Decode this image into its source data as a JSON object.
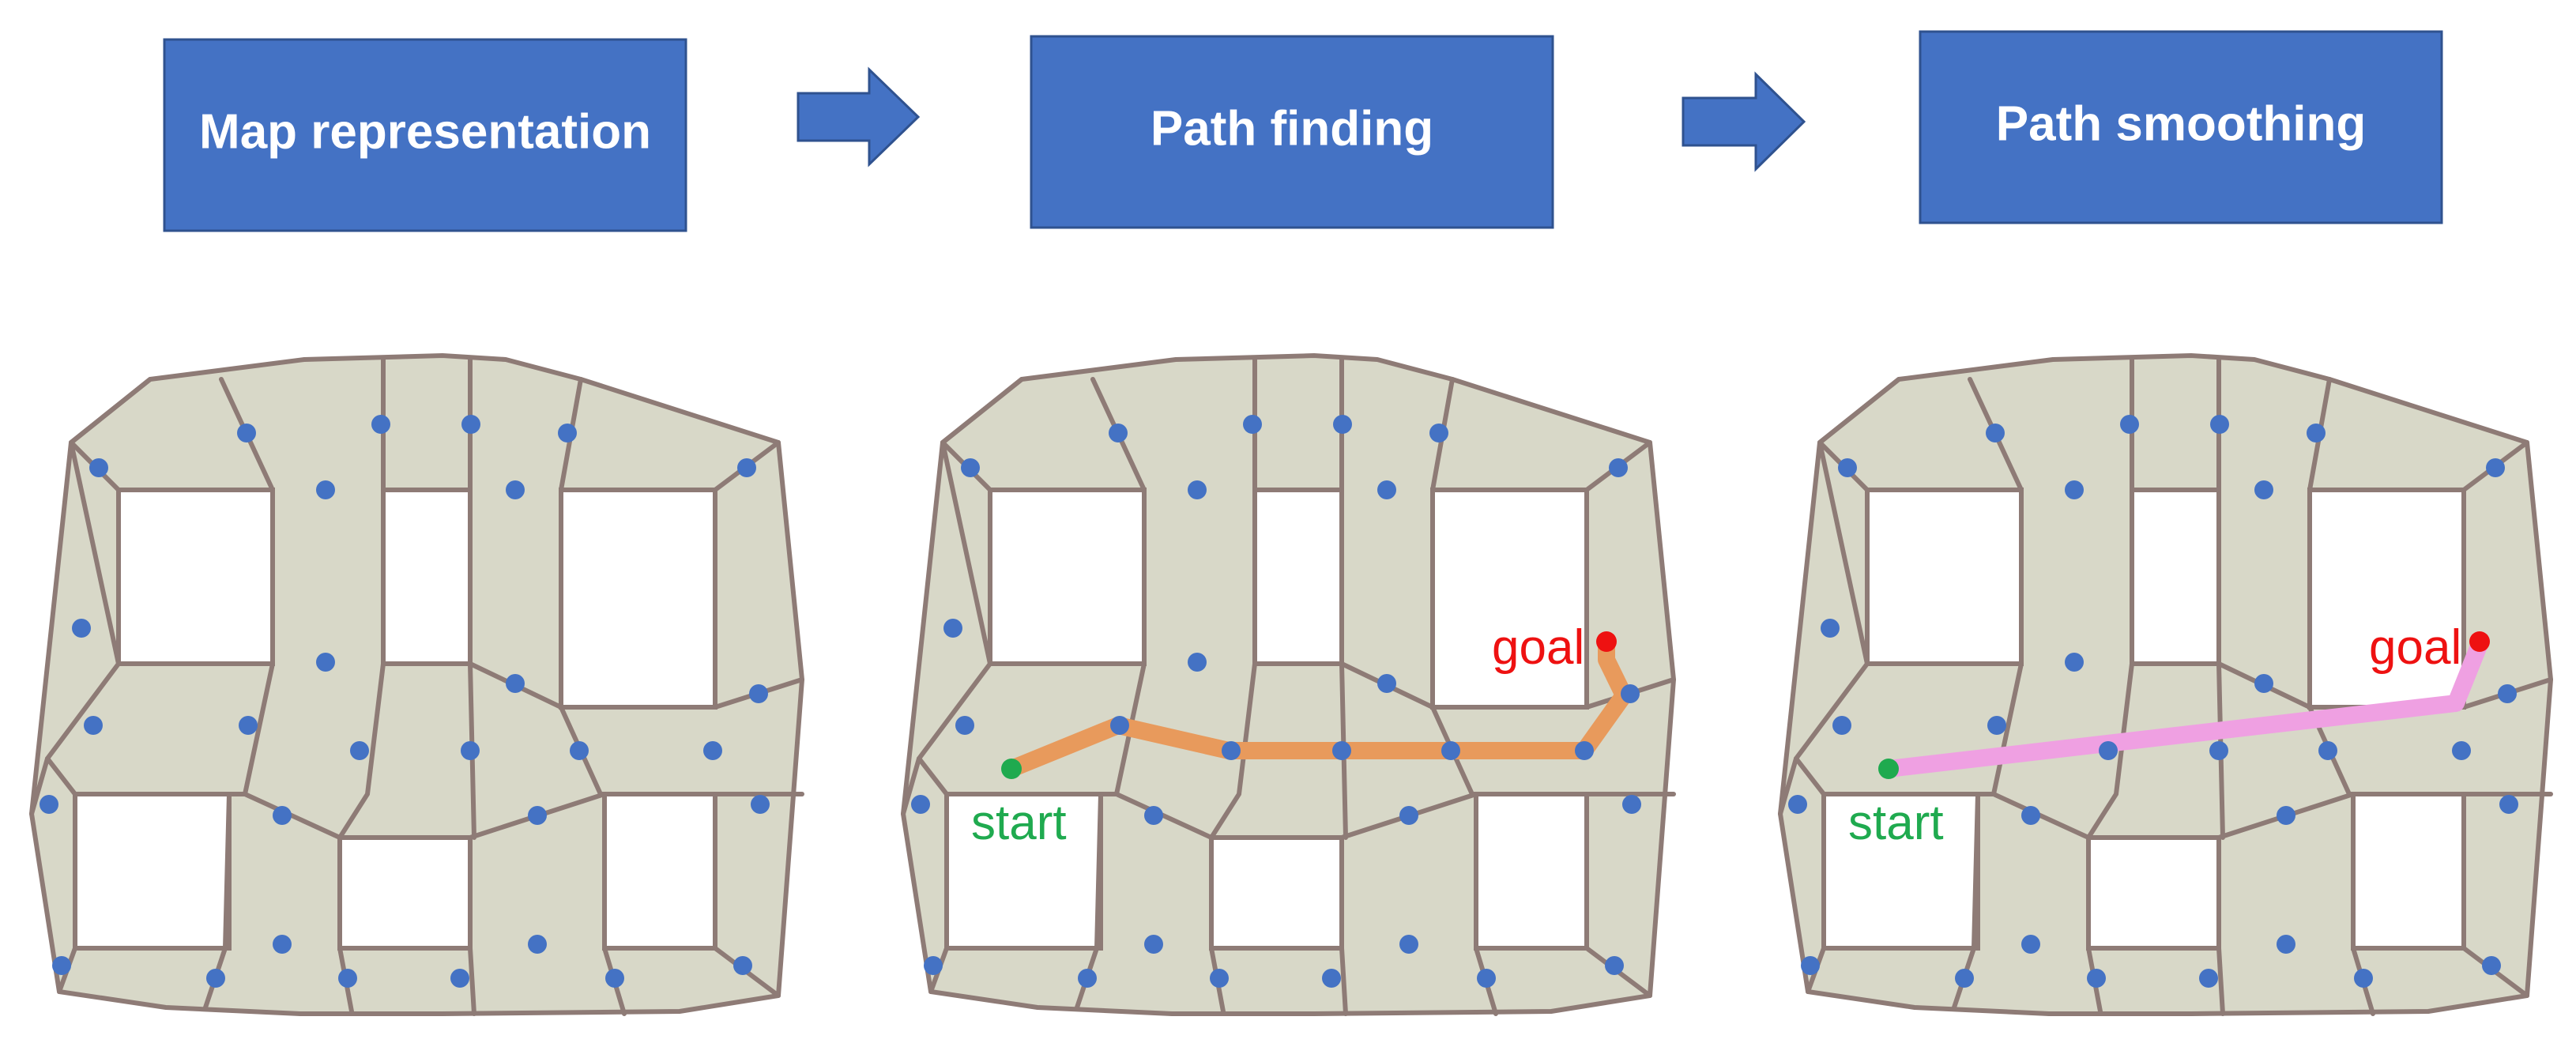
{
  "stages": [
    {
      "label": "Map representation"
    },
    {
      "label": "Path finding"
    },
    {
      "label": "Path smoothing"
    }
  ],
  "path_finding": {
    "start_label": "start",
    "goal_label": "goal"
  },
  "path_smoothing": {
    "start_label": "start",
    "goal_label": "goal"
  },
  "colors": {
    "box": "#4472C4",
    "mesh_fill": "#D8D8C8",
    "mesh_edge": "#8E7B76",
    "node": "#4472C4",
    "start": "#1FAA4F",
    "goal": "#EE1111",
    "found_path": "#E89A5C",
    "smoothed_path": "#EFA0E2"
  }
}
